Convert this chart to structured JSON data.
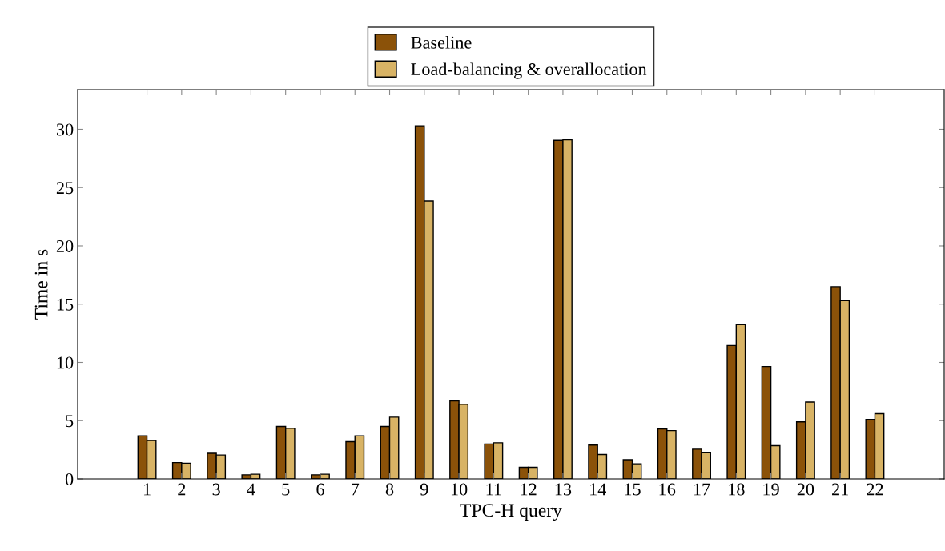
{
  "chart_data": {
    "type": "bar",
    "xlabel": "TPC-H query",
    "ylabel": "Time in s",
    "categories": [
      "1",
      "2",
      "3",
      "4",
      "5",
      "6",
      "7",
      "8",
      "9",
      "10",
      "11",
      "12",
      "13",
      "14",
      "15",
      "16",
      "17",
      "18",
      "19",
      "20",
      "21",
      "22"
    ],
    "series": [
      {
        "name": "Baseline",
        "color": "#8b5209",
        "values": [
          3.7,
          1.4,
          2.2,
          0.35,
          4.5,
          0.35,
          3.2,
          4.5,
          30.3,
          6.7,
          3.0,
          1.0,
          29.05,
          2.9,
          1.65,
          4.3,
          2.55,
          11.45,
          9.65,
          4.9,
          16.5,
          5.1
        ]
      },
      {
        "name": "Load-balancing & overallocation",
        "color": "#d8b365",
        "values": [
          3.3,
          1.35,
          2.05,
          0.4,
          4.35,
          0.4,
          3.7,
          5.3,
          23.85,
          6.4,
          3.1,
          1.0,
          29.1,
          2.1,
          1.3,
          4.15,
          2.25,
          13.25,
          2.85,
          6.6,
          15.3,
          5.6
        ]
      }
    ],
    "ylim": [
      0,
      33.4
    ],
    "yticks": [
      0,
      5,
      10,
      15,
      20,
      25,
      30
    ],
    "grid": false,
    "legend": "top"
  }
}
